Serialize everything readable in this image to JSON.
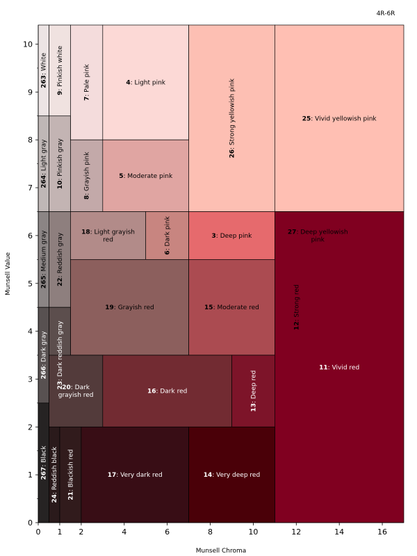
{
  "chart_data": {
    "type": "heatmap",
    "title": "4R-6R",
    "xlabel": "Munsell Chroma",
    "ylabel": "Munsell Value",
    "xlim": [
      0,
      17
    ],
    "ylim": [
      0,
      10.4
    ],
    "xticks": [
      0,
      1,
      2,
      4,
      6,
      8,
      10,
      12,
      14,
      16
    ],
    "yticks": [
      0,
      1,
      2,
      3,
      4,
      5,
      6,
      7,
      8,
      9,
      10
    ],
    "regions": [
      {
        "num": "263",
        "name": "White",
        "x": [
          0,
          0.5
        ],
        "y": [
          8.5,
          10.4
        ],
        "color": "#ece4e4",
        "text": "#000000",
        "vertical": true
      },
      {
        "num": "9",
        "name": "Pinkish white",
        "x": [
          0.5,
          1.5
        ],
        "y": [
          8.5,
          10.4
        ],
        "color": "#f0e2e0",
        "text": "#000000",
        "vertical": true
      },
      {
        "num": "7",
        "name": "Pale pink",
        "x": [
          1.5,
          3
        ],
        "y": [
          8,
          10.4
        ],
        "color": "#f4dcdc",
        "text": "#000000",
        "vertical": true
      },
      {
        "num": "4",
        "name": "Light pink",
        "x": [
          3,
          7
        ],
        "y": [
          8,
          10.4
        ],
        "color": "#fcd9d6",
        "text": "#000000",
        "vertical": false
      },
      {
        "num": "26",
        "name": "Strong yellowish pink",
        "x": [
          7,
          11
        ],
        "y": [
          6.5,
          10.4
        ],
        "color": "#fdbfb3",
        "text": "#000000",
        "vertical": true
      },
      {
        "num": "25",
        "name": "Vivid yellowish pink",
        "x": [
          11,
          17
        ],
        "y": [
          6.5,
          10.4
        ],
        "color": "#ffbfb3",
        "text": "#000000",
        "vertical": false
      },
      {
        "num": "264",
        "name": "Light gray",
        "x": [
          0,
          0.5
        ],
        "y": [
          6.5,
          8.5
        ],
        "color": "#bfb7b6",
        "text": "#000000",
        "vertical": true
      },
      {
        "num": "10",
        "name": "Pinkish gray",
        "x": [
          0.5,
          1.5
        ],
        "y": [
          6.5,
          8.5
        ],
        "color": "#c3b4b3",
        "text": "#000000",
        "vertical": true
      },
      {
        "num": "8",
        "name": "Grayish pink",
        "x": [
          1.5,
          3
        ],
        "y": [
          6.5,
          8
        ],
        "color": "#c3a9a9",
        "text": "#000000",
        "vertical": true
      },
      {
        "num": "5",
        "name": "Moderate pink",
        "x": [
          3,
          7
        ],
        "y": [
          6.5,
          8
        ],
        "color": "#e0a5a2",
        "text": "#000000",
        "vertical": false
      },
      {
        "num": "265",
        "name": "Medium gray",
        "x": [
          0,
          0.5
        ],
        "y": [
          4.5,
          6.5
        ],
        "color": "#8b8585",
        "text": "#000000",
        "vertical": true
      },
      {
        "num": "22",
        "name": "Reddish gray",
        "x": [
          0.5,
          1.5
        ],
        "y": [
          4.5,
          6.5
        ],
        "color": "#8e7f7e",
        "text": "#000000",
        "vertical": true
      },
      {
        "num": "18",
        "name": "Light grayish red",
        "x": [
          1.5,
          5
        ],
        "y": [
          5.5,
          6.5
        ],
        "color": "#b28b89",
        "text": "#000000",
        "vertical": false
      },
      {
        "num": "6",
        "name": "Dark pink",
        "x": [
          5,
          7
        ],
        "y": [
          5.5,
          6.5
        ],
        "color": "#c88580",
        "text": "#000000",
        "vertical": true
      },
      {
        "num": "3",
        "name": "Deep pink",
        "x": [
          7,
          11
        ],
        "y": [
          5.5,
          6.5
        ],
        "color": "#e66a6d",
        "text": "#000000",
        "vertical": false
      },
      {
        "num": "27",
        "name": "Deep yellowish pink",
        "x": [
          11,
          15
        ],
        "y": [
          5.5,
          6.5
        ],
        "color": "#ef6463",
        "text": "#000000",
        "vertical": false
      },
      {
        "num": "19",
        "name": "Grayish red",
        "x": [
          1.5,
          7
        ],
        "y": [
          3.5,
          5.5
        ],
        "color": "#8c5f5d",
        "text": "#000000",
        "vertical": false
      },
      {
        "num": "15",
        "name": "Moderate red",
        "x": [
          7,
          11
        ],
        "y": [
          3.5,
          5.5
        ],
        "color": "#ab4b51",
        "text": "#000000",
        "vertical": false
      },
      {
        "num": "12",
        "name": "Strong red",
        "x": [
          11,
          13
        ],
        "y": [
          3.5,
          5.5
        ],
        "color": "#c1344b",
        "text": "#000000",
        "vertical": true
      },
      {
        "num": "266",
        "name": "Dark gray",
        "x": [
          0,
          0.5
        ],
        "y": [
          2.5,
          4.5
        ],
        "color": "#585151",
        "text": "#ffffff",
        "vertical": true
      },
      {
        "num": "23",
        "name": "Dark reddish gray",
        "x": [
          0.5,
          1.5
        ],
        "y": [
          2.5,
          4.5
        ],
        "color": "#5c4e4d",
        "text": "#ffffff",
        "vertical": true
      },
      {
        "num": "20",
        "name": "Dark grayish red",
        "x": [
          0.5,
          3
        ],
        "y": [
          2,
          3.5
        ],
        "color": "#533b3b",
        "text": "#ffffff",
        "vertical": false
      },
      {
        "num": "16",
        "name": "Dark red",
        "x": [
          3,
          9
        ],
        "y": [
          2,
          3.5
        ],
        "color": "#722b32",
        "text": "#ffffff",
        "vertical": false
      },
      {
        "num": "13",
        "name": "Deep red",
        "x": [
          9,
          11
        ],
        "y": [
          2,
          3.5
        ],
        "color": "#7d1429",
        "text": "#ffffff",
        "vertical": true
      },
      {
        "num": "11",
        "name": "Vivid red",
        "x": [
          11,
          17
        ],
        "y": [
          0,
          6.5
        ],
        "color": "#800020",
        "text": "#ffffff",
        "vertical": false
      },
      {
        "num": "267",
        "name": "Black",
        "x": [
          0,
          0.5
        ],
        "y": [
          0,
          2.5
        ],
        "color": "#262323",
        "text": "#ffffff",
        "vertical": true
      },
      {
        "num": "24",
        "name": "Reddish black",
        "x": [
          0.5,
          1
        ],
        "y": [
          0,
          2
        ],
        "color": "#2a1a1b",
        "text": "#ffffff",
        "vertical": true
      },
      {
        "num": "21",
        "name": "Blackish red",
        "x": [
          1,
          2
        ],
        "y": [
          0,
          2
        ],
        "color": "#311b1c",
        "text": "#ffffff",
        "vertical": true
      },
      {
        "num": "17",
        "name": "Very dark red",
        "x": [
          2,
          7
        ],
        "y": [
          0,
          2
        ],
        "color": "#380d15",
        "text": "#ffffff",
        "vertical": false
      },
      {
        "num": "14",
        "name": "Very deep red",
        "x": [
          7,
          11
        ],
        "y": [
          0,
          2
        ],
        "color": "#4a0008",
        "text": "#ffffff",
        "vertical": false
      }
    ]
  }
}
